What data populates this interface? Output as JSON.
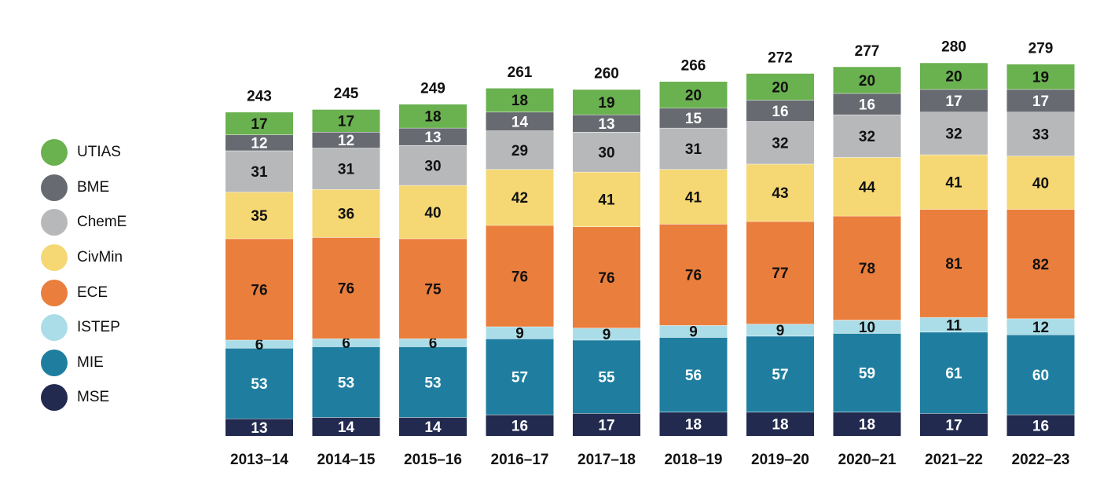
{
  "chart_data": {
    "type": "bar",
    "stacked": true,
    "categories": [
      "2013–14",
      "2014–15",
      "2015–16",
      "2016–17",
      "2017–18",
      "2018–19",
      "2019–20",
      "2020–21",
      "2021–22",
      "2022–23"
    ],
    "series": [
      {
        "name": "MSE",
        "color": "#222a4f",
        "label_color": "#ffffff",
        "values": [
          13,
          14,
          14,
          16,
          17,
          18,
          18,
          18,
          17,
          16
        ]
      },
      {
        "name": "MIE",
        "color": "#1f7ea0",
        "label_color": "#ffffff",
        "values": [
          53,
          53,
          53,
          57,
          55,
          56,
          57,
          59,
          61,
          60
        ]
      },
      {
        "name": "ISTEP",
        "color": "#abdde8",
        "label_color": "#111111",
        "values": [
          6,
          6,
          6,
          9,
          9,
          9,
          9,
          10,
          11,
          12
        ]
      },
      {
        "name": "ECE",
        "color": "#ea7e3c",
        "label_color": "#111111",
        "values": [
          76,
          76,
          75,
          76,
          76,
          76,
          77,
          78,
          81,
          82
        ]
      },
      {
        "name": "CivMin",
        "color": "#f5d874",
        "label_color": "#111111",
        "values": [
          35,
          36,
          40,
          42,
          41,
          41,
          43,
          44,
          41,
          40
        ]
      },
      {
        "name": "ChemE",
        "color": "#b7b8ba",
        "label_color": "#111111",
        "values": [
          31,
          31,
          30,
          29,
          30,
          31,
          32,
          32,
          32,
          33
        ]
      },
      {
        "name": "BME",
        "color": "#676a70",
        "label_color": "#ffffff",
        "values": [
          12,
          12,
          13,
          14,
          13,
          15,
          16,
          16,
          17,
          17
        ]
      },
      {
        "name": "UTIAS",
        "color": "#6ab150",
        "label_color": "#111111",
        "values": [
          17,
          17,
          18,
          18,
          19,
          20,
          20,
          20,
          20,
          19
        ]
      }
    ],
    "totals": [
      243,
      245,
      249,
      261,
      260,
      266,
      272,
      277,
      280,
      279
    ],
    "legend_order": [
      "UTIAS",
      "BME",
      "ChemE",
      "CivMin",
      "ECE",
      "ISTEP",
      "MIE",
      "MSE"
    ],
    "legend_position": "left",
    "ylim": [
      0,
      280
    ],
    "grid": false,
    "title": "",
    "xlabel": "",
    "ylabel": ""
  }
}
